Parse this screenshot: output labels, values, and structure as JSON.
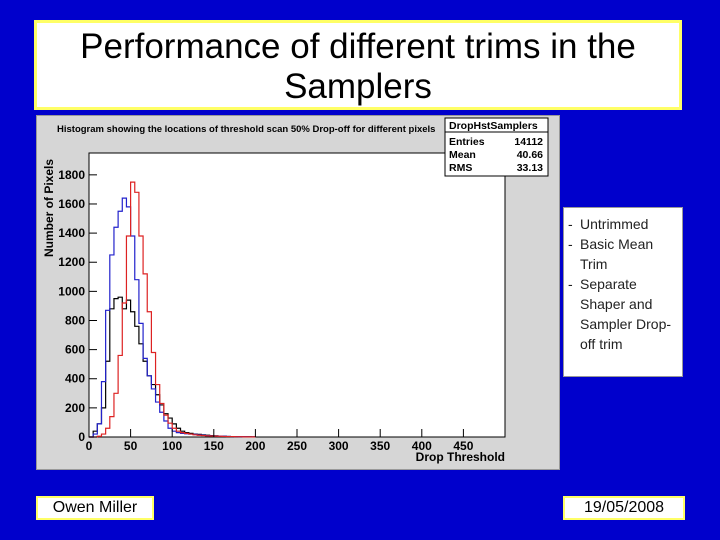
{
  "slide": {
    "title": "Performance of different trims in the Samplers",
    "author": "Owen Miller",
    "date": "19/05/2008"
  },
  "legend": {
    "items": [
      {
        "dash": "-",
        "label": "Untrimmed"
      },
      {
        "dash": "-",
        "label": "Basic Mean Trim"
      },
      {
        "dash": "-",
        "label": "Separate Shaper and Sampler Drop-off trim"
      }
    ]
  },
  "chart_data": {
    "type": "histogram-step",
    "title": "Histogram showing the locations of threshold scan 50% Drop-off for different pixels",
    "xlabel": "Drop Threshold",
    "ylabel": "Number of Pixels",
    "xlim": [
      0,
      500
    ],
    "ylim": [
      0,
      1950
    ],
    "xticks": [
      0,
      50,
      100,
      150,
      200,
      250,
      300,
      350,
      400,
      450
    ],
    "yticks": [
      0,
      200,
      400,
      600,
      800,
      1000,
      1200,
      1400,
      1600,
      1800
    ],
    "stats_box": {
      "name": "DropHstSamplers",
      "rows": [
        {
          "label": "Entries",
          "value": "14112"
        },
        {
          "label": "Mean",
          "value": "40.66"
        },
        {
          "label": "RMS",
          "value": "33.13"
        }
      ]
    },
    "bin_width": 5,
    "series": [
      {
        "color": "#000000",
        "values": [
          0,
          40,
          90,
          200,
          520,
          880,
          950,
          960,
          880,
          940,
          860,
          760,
          640,
          520,
          420,
          360,
          290,
          220,
          160,
          130,
          90,
          60,
          40,
          30,
          25,
          20,
          18,
          15,
          12,
          10,
          8,
          6,
          5,
          4,
          3,
          3,
          2,
          2,
          2,
          1
        ]
      },
      {
        "color": "#2222cc",
        "values": [
          0,
          20,
          90,
          380,
          870,
          1250,
          1440,
          1550,
          1640,
          1580,
          1380,
          1080,
          780,
          540,
          420,
          330,
          240,
          170,
          110,
          60,
          40,
          30,
          25,
          22,
          20,
          18,
          15,
          12,
          10,
          8,
          7,
          6,
          5,
          4,
          3,
          3,
          2,
          2,
          1,
          1
        ]
      },
      {
        "color": "#dd2222",
        "values": [
          0,
          0,
          5,
          20,
          60,
          140,
          300,
          560,
          920,
          1380,
          1750,
          1680,
          1380,
          1120,
          860,
          580,
          360,
          230,
          150,
          95,
          60,
          40,
          30,
          25,
          20,
          15,
          12,
          10,
          8,
          7,
          6,
          5,
          4,
          3,
          3,
          2,
          2,
          1,
          1,
          1
        ]
      }
    ]
  }
}
